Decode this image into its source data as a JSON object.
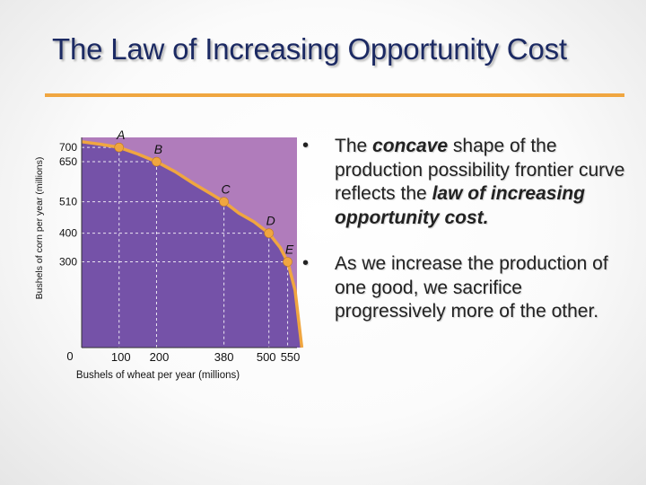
{
  "slide": {
    "title": "The Law of Increasing Opportunity Cost"
  },
  "bullets": {
    "b1": {
      "t1": "The ",
      "t2": "concave",
      "t3": " shape of the production possibility frontier curve reflects the ",
      "t4": "law of increasing opportunity cost."
    },
    "b2": {
      "text": "As we increase the production of one good, we sacrifice progressively more of the other."
    }
  },
  "colors": {
    "title": "#1c2a63",
    "rule": "#f0a640",
    "region_inside": "#7552a8",
    "region_outside": "#b07cbb",
    "curve": "#f0a640",
    "point": "#f0a640"
  },
  "chart_data": {
    "type": "line",
    "title": "",
    "xlabel": "Bushels of wheat per year (millions)",
    "ylabel": "Bushels of corn per year (millions)",
    "xlim": [
      0,
      575
    ],
    "ylim": [
      0,
      735
    ],
    "origin_label": "0",
    "x_ticks": [
      "100",
      "200",
      "380",
      "500",
      "550"
    ],
    "x_tick_values": [
      100,
      200,
      380,
      500,
      550
    ],
    "y_ticks": [
      "700",
      "650",
      "510",
      "400",
      "300"
    ],
    "y_tick_values": [
      700,
      650,
      510,
      400,
      300
    ],
    "points": [
      {
        "label": "A",
        "x": 100,
        "y": 700
      },
      {
        "label": "B",
        "x": 200,
        "y": 650
      },
      {
        "label": "C",
        "x": 380,
        "y": 510
      },
      {
        "label": "D",
        "x": 500,
        "y": 400
      },
      {
        "label": "E",
        "x": 550,
        "y": 300
      }
    ],
    "curve_x": [
      0,
      50,
      100,
      150,
      200,
      250,
      300,
      350,
      380,
      420,
      460,
      500,
      530,
      550,
      570,
      588
    ],
    "curve_y": [
      720,
      711,
      700,
      677,
      650,
      615,
      573,
      534,
      510,
      470,
      440,
      400,
      350,
      300,
      200,
      0
    ]
  }
}
